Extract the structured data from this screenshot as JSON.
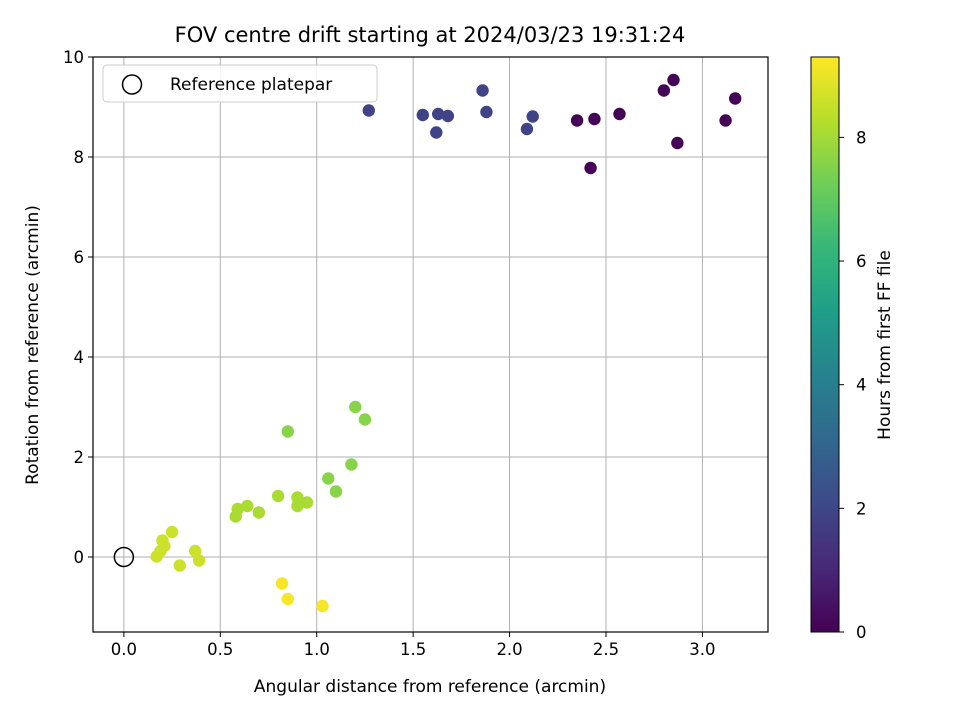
{
  "chart_data": {
    "type": "scatter",
    "title": "FOV centre drift starting at 2024/03/23 19:31:24",
    "xlabel": "Angular distance from reference (arcmin)",
    "ylabel": "Rotation from reference (arcmin)",
    "xlim": [
      -0.16,
      3.34
    ],
    "ylim": [
      -1.5,
      10.0
    ],
    "xticks": [
      0.0,
      0.5,
      1.0,
      1.5,
      2.0,
      2.5,
      3.0
    ],
    "xtick_labels": [
      "0.0",
      "0.5",
      "1.0",
      "1.5",
      "2.0",
      "2.5",
      "3.0"
    ],
    "yticks": [
      0,
      2,
      4,
      6,
      8,
      10
    ],
    "ytick_labels": [
      "0",
      "2",
      "4",
      "6",
      "8",
      "10"
    ],
    "grid": true,
    "legend": {
      "position": "top-left",
      "entries": [
        "Reference platepar"
      ]
    },
    "reference_point": {
      "x": 0.0,
      "y": 0.0
    },
    "colorbar": {
      "label": "Hours from first FF file",
      "colormap": "viridis",
      "range": [
        0,
        9.3
      ],
      "ticks": [
        0,
        2,
        4,
        6,
        8
      ],
      "tick_labels": [
        "0",
        "2",
        "4",
        "6",
        "8"
      ],
      "stops": [
        "#440154",
        "#482878",
        "#3e4989",
        "#31688e",
        "#26828e",
        "#1f9e89",
        "#35b779",
        "#6ece58",
        "#b5de2b",
        "#fde725"
      ]
    },
    "points": [
      {
        "x": 2.42,
        "y": 7.78,
        "hours": 0.05
      },
      {
        "x": 2.35,
        "y": 8.73,
        "hours": 0.1
      },
      {
        "x": 2.44,
        "y": 8.76,
        "hours": 0.1
      },
      {
        "x": 2.57,
        "y": 8.86,
        "hours": 0.1
      },
      {
        "x": 2.8,
        "y": 9.33,
        "hours": 0.1
      },
      {
        "x": 2.85,
        "y": 9.54,
        "hours": 0.1
      },
      {
        "x": 2.87,
        "y": 8.28,
        "hours": 0.1
      },
      {
        "x": 3.12,
        "y": 8.73,
        "hours": 0.05
      },
      {
        "x": 3.17,
        "y": 9.17,
        "hours": 0.05
      },
      {
        "x": 1.27,
        "y": 8.93,
        "hours": 1.9
      },
      {
        "x": 1.55,
        "y": 8.84,
        "hours": 1.9
      },
      {
        "x": 1.62,
        "y": 8.49,
        "hours": 1.9
      },
      {
        "x": 1.63,
        "y": 8.86,
        "hours": 1.9
      },
      {
        "x": 1.68,
        "y": 8.82,
        "hours": 1.9
      },
      {
        "x": 1.86,
        "y": 9.33,
        "hours": 1.9
      },
      {
        "x": 1.88,
        "y": 8.9,
        "hours": 1.9
      },
      {
        "x": 2.09,
        "y": 8.56,
        "hours": 1.9
      },
      {
        "x": 2.12,
        "y": 8.81,
        "hours": 1.9
      },
      {
        "x": 1.2,
        "y": 3.0,
        "hours": 7.6
      },
      {
        "x": 1.25,
        "y": 2.75,
        "hours": 7.6
      },
      {
        "x": 0.85,
        "y": 2.51,
        "hours": 7.6
      },
      {
        "x": 1.18,
        "y": 1.85,
        "hours": 7.6
      },
      {
        "x": 1.06,
        "y": 1.57,
        "hours": 7.6
      },
      {
        "x": 1.1,
        "y": 1.31,
        "hours": 7.6
      },
      {
        "x": 0.8,
        "y": 1.22,
        "hours": 8.1
      },
      {
        "x": 0.9,
        "y": 1.19,
        "hours": 8.1
      },
      {
        "x": 0.95,
        "y": 1.09,
        "hours": 8.1
      },
      {
        "x": 0.9,
        "y": 1.02,
        "hours": 8.1
      },
      {
        "x": 0.64,
        "y": 1.02,
        "hours": 8.1
      },
      {
        "x": 0.59,
        "y": 0.96,
        "hours": 8.1
      },
      {
        "x": 0.7,
        "y": 0.89,
        "hours": 8.1
      },
      {
        "x": 0.58,
        "y": 0.81,
        "hours": 8.1
      },
      {
        "x": 0.25,
        "y": 0.5,
        "hours": 8.6
      },
      {
        "x": 0.2,
        "y": 0.33,
        "hours": 8.6
      },
      {
        "x": 0.21,
        "y": 0.22,
        "hours": 8.6
      },
      {
        "x": 0.19,
        "y": 0.12,
        "hours": 8.6
      },
      {
        "x": 0.17,
        "y": 0.01,
        "hours": 8.6
      },
      {
        "x": 0.37,
        "y": 0.12,
        "hours": 8.6
      },
      {
        "x": 0.39,
        "y": -0.07,
        "hours": 8.6
      },
      {
        "x": 0.29,
        "y": -0.17,
        "hours": 8.6
      },
      {
        "x": 0.82,
        "y": -0.53,
        "hours": 9.2
      },
      {
        "x": 0.85,
        "y": -0.84,
        "hours": 9.2
      },
      {
        "x": 1.03,
        "y": -0.98,
        "hours": 9.2
      }
    ]
  }
}
